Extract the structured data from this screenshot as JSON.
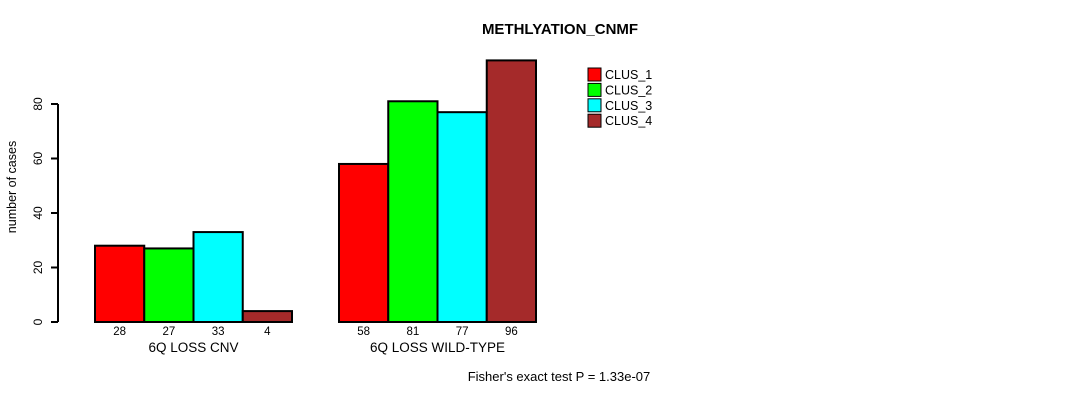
{
  "title": "METHLYATION_CNMF",
  "footer": "Fisher's exact test P = 1.33e-07",
  "chart_data": {
    "type": "bar",
    "title": "METHLYATION_CNMF",
    "xlabel": "",
    "ylabel": "number of cases",
    "categories": [
      "6Q LOSS CNV",
      "6Q LOSS WILD-TYPE"
    ],
    "series": [
      {
        "name": "CLUS_1",
        "color": "#FF0000",
        "values": [
          28,
          58
        ]
      },
      {
        "name": "CLUS_2",
        "color": "#00FF00",
        "values": [
          27,
          81
        ]
      },
      {
        "name": "CLUS_3",
        "color": "#00FFFF",
        "values": [
          33,
          77
        ]
      },
      {
        "name": "CLUS_4",
        "color": "#A52A2A",
        "values": [
          4,
          96
        ]
      }
    ],
    "bar_value_labels": [
      [
        28,
        27,
        33,
        4
      ],
      [
        58,
        81,
        77,
        96
      ]
    ],
    "yticks": [
      0,
      20,
      40,
      60,
      80
    ],
    "ylim": [
      0,
      96
    ],
    "grid": false,
    "legend_position": "top-right",
    "legend_entries": [
      "CLUS_1",
      "CLUS_2",
      "CLUS_3",
      "CLUS_4"
    ],
    "annotation": "Fisher's exact test P = 1.33e-07",
    "axis_color": "#000000",
    "bar_border_color": "#000000"
  }
}
